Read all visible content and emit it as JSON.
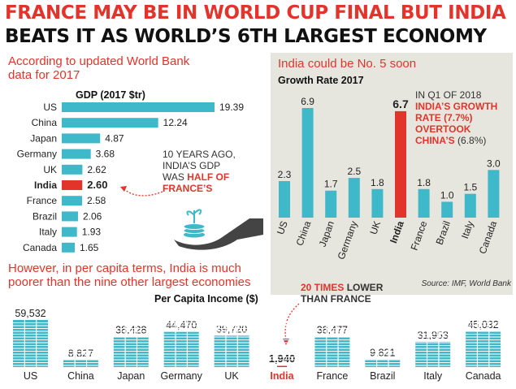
{
  "headline": {
    "line1": "FRANCE MAY BE IN WORLD CUP FINAL BUT INDIA",
    "line2": "BEATS IT AS WORLD’S 6TH LARGEST ECONOMY"
  },
  "colors": {
    "accent_red": "#e2342a",
    "bar_blue": "#3fb8c9",
    "panel_grey": "#e6e6df"
  },
  "gdp_section": {
    "intro_line1": "According to updated World Bank",
    "intro_line2": "data for 2017",
    "title": "GDP (2017 $tr)",
    "note_line1": "10 YEARS AGO,",
    "note_line2": "INDIA’S GDP",
    "note_line3_prefix": "WAS ",
    "note_highlight1": "HALF OF",
    "note_highlight2": "FRANCE’S"
  },
  "growth_section": {
    "heading": "India could be No. 5 soon",
    "title": "Growth Rate 2017",
    "note_line1": "IN Q1 OF 2018",
    "note_red1": "INDIA’S GROWTH",
    "note_red2": "RATE (7.7%)",
    "note_red3": "OVERTOOK",
    "note_red4": "CHINA’S",
    "note_tail": " (6.8%)",
    "source": "Source: IMF, World Bank"
  },
  "percapita_section": {
    "intro_line1": "However, in per capita terms, India is much",
    "intro_line2": "poorer than the nine other largest economies",
    "title": "Per Capita Income ($)",
    "note_red": "20 TIMES",
    "note_rest1": " LOWER",
    "note_line2": "THAN FRANCE"
  },
  "chart_data": [
    {
      "type": "bar",
      "orientation": "horizontal",
      "title": "GDP (2017 $tr)",
      "categories": [
        "US",
        "China",
        "Japan",
        "Germany",
        "UK",
        "India",
        "France",
        "Brazil",
        "Italy",
        "Canada"
      ],
      "values": [
        19.39,
        12.24,
        4.87,
        3.68,
        2.62,
        2.6,
        2.58,
        2.06,
        1.93,
        1.65
      ],
      "value_labels": [
        "19.39",
        "12.24",
        "4.87",
        "3.68",
        "2.62",
        "2.60",
        "2.58",
        "2.06",
        "1.93",
        "1.65"
      ],
      "highlight": "India"
    },
    {
      "type": "bar",
      "orientation": "vertical",
      "title": "Growth Rate 2017",
      "categories": [
        "US",
        "China",
        "Japan",
        "Germany",
        "UK",
        "India",
        "France",
        "Brazil",
        "Italy",
        "Canada"
      ],
      "values": [
        2.3,
        6.9,
        1.7,
        2.5,
        1.8,
        6.7,
        1.8,
        1.0,
        1.5,
        3.0
      ],
      "value_labels": [
        "2.3",
        "6.9",
        "1.7",
        "2.5",
        "1.8",
        "6.7",
        "1.8",
        "1.0",
        "1.5",
        "3.0"
      ],
      "highlight": "India"
    },
    {
      "type": "bar",
      "orientation": "vertical",
      "title": "Per Capita Income ($)",
      "categories": [
        "US",
        "China",
        "Japan",
        "Germany",
        "UK",
        "India",
        "France",
        "Brazil",
        "Italy",
        "Canada"
      ],
      "values": [
        59532,
        8827,
        38428,
        44470,
        39720,
        1940,
        38477,
        9821,
        31953,
        45032
      ],
      "value_labels": [
        "59,532",
        "8,827",
        "38,428",
        "44,470",
        "39,720",
        "1,940",
        "38,477",
        "9,821",
        "31,953",
        "45,032"
      ],
      "highlight": "India"
    }
  ]
}
